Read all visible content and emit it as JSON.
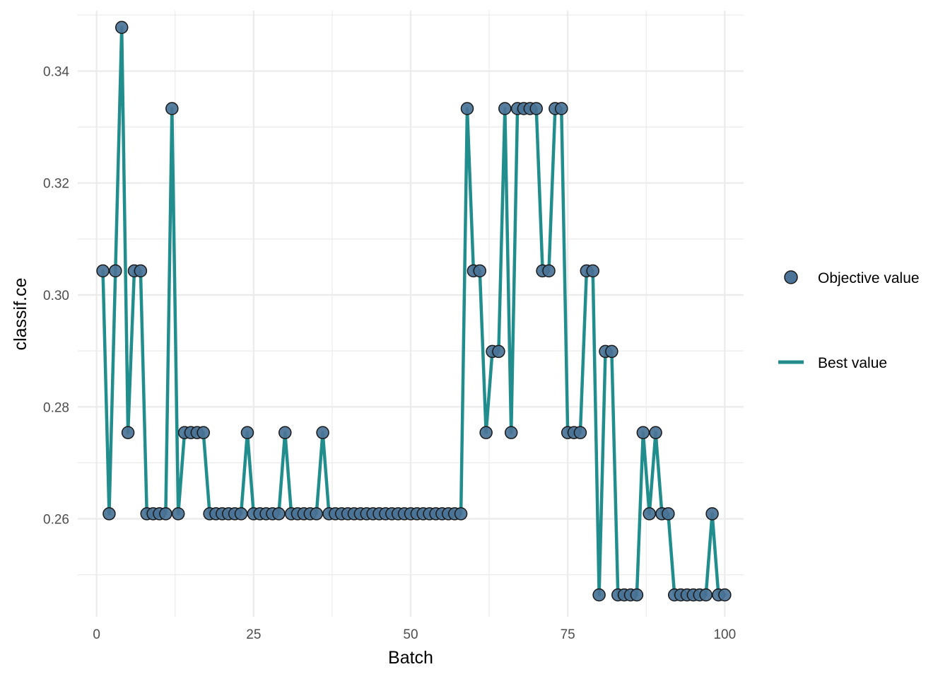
{
  "chart_data": {
    "type": "line",
    "xlabel": "Batch",
    "ylabel": "classif.ce",
    "xlim": [
      -3,
      103
    ],
    "ylim": [
      0.2425,
      0.3508
    ],
    "x_ticks": [
      0,
      25,
      50,
      75,
      100
    ],
    "y_ticks": [
      0.26,
      0.28,
      0.3,
      0.32,
      0.34
    ],
    "x_tick_labels": [
      "0",
      "25",
      "50",
      "75",
      "100"
    ],
    "y_tick_labels": [
      "0.26",
      "0.28",
      "0.30",
      "0.32",
      "0.34"
    ],
    "grid": true,
    "legend_position": "right",
    "x": [
      1,
      2,
      3,
      4,
      5,
      6,
      7,
      8,
      9,
      10,
      11,
      12,
      13,
      14,
      15,
      16,
      17,
      18,
      19,
      20,
      21,
      22,
      23,
      24,
      25,
      26,
      27,
      28,
      29,
      30,
      31,
      32,
      33,
      34,
      35,
      36,
      37,
      38,
      39,
      40,
      41,
      42,
      43,
      44,
      45,
      46,
      47,
      48,
      49,
      50,
      51,
      52,
      53,
      54,
      55,
      56,
      57,
      58,
      59,
      60,
      61,
      62,
      63,
      64,
      65,
      66,
      67,
      68,
      69,
      70,
      71,
      72,
      73,
      74,
      75,
      76,
      77,
      78,
      79,
      80,
      81,
      82,
      83,
      84,
      85,
      86,
      87,
      88,
      89,
      90,
      91,
      92,
      93,
      94,
      95,
      96,
      97,
      98,
      99,
      100
    ],
    "series": [
      {
        "name": "Objective value",
        "kind": "points",
        "color": "#4a7397",
        "values": [
          0.3043,
          0.2609,
          0.3043,
          0.3478,
          0.2754,
          0.3043,
          0.3043,
          0.2609,
          0.2609,
          0.2609,
          0.2609,
          0.3333,
          0.2609,
          0.2754,
          0.2754,
          0.2754,
          0.2754,
          0.2609,
          0.2609,
          0.2609,
          0.2609,
          0.2609,
          0.2609,
          0.2754,
          0.2609,
          0.2609,
          0.2609,
          0.2609,
          0.2609,
          0.2754,
          0.2609,
          0.2609,
          0.2609,
          0.2609,
          0.2609,
          0.2754,
          0.2609,
          0.2609,
          0.2609,
          0.2609,
          0.2609,
          0.2609,
          0.2609,
          0.2609,
          0.2609,
          0.2609,
          0.2609,
          0.2609,
          0.2609,
          0.2609,
          0.2609,
          0.2609,
          0.2609,
          0.2609,
          0.2609,
          0.2609,
          0.2609,
          0.2609,
          0.3333,
          0.3043,
          0.3043,
          0.2754,
          0.2899,
          0.2899,
          0.3333,
          0.2754,
          0.3333,
          0.3333,
          0.3333,
          0.3333,
          0.3043,
          0.3043,
          0.3333,
          0.3333,
          0.2754,
          0.2754,
          0.2754,
          0.3043,
          0.3043,
          0.2464,
          0.2899,
          0.2899,
          0.2464,
          0.2464,
          0.2464,
          0.2464,
          0.2754,
          0.2609,
          0.2754,
          0.2609,
          0.2609,
          0.2464,
          0.2464,
          0.2464,
          0.2464,
          0.2464,
          0.2464,
          0.2609,
          0.2464,
          0.2464
        ]
      },
      {
        "name": "Best value",
        "kind": "line",
        "color": "#218e8d",
        "values": [
          0.3043,
          0.2609,
          0.3043,
          0.3478,
          0.2754,
          0.3043,
          0.3043,
          0.2609,
          0.2609,
          0.2609,
          0.2609,
          0.3333,
          0.2609,
          0.2754,
          0.2754,
          0.2754,
          0.2754,
          0.2609,
          0.2609,
          0.2609,
          0.2609,
          0.2609,
          0.2609,
          0.2754,
          0.2609,
          0.2609,
          0.2609,
          0.2609,
          0.2609,
          0.2754,
          0.2609,
          0.2609,
          0.2609,
          0.2609,
          0.2609,
          0.2754,
          0.2609,
          0.2609,
          0.2609,
          0.2609,
          0.2609,
          0.2609,
          0.2609,
          0.2609,
          0.2609,
          0.2609,
          0.2609,
          0.2609,
          0.2609,
          0.2609,
          0.2609,
          0.2609,
          0.2609,
          0.2609,
          0.2609,
          0.2609,
          0.2609,
          0.2609,
          0.3333,
          0.3043,
          0.3043,
          0.2754,
          0.2899,
          0.2899,
          0.3333,
          0.2754,
          0.3333,
          0.3333,
          0.3333,
          0.3333,
          0.3043,
          0.3043,
          0.3333,
          0.3333,
          0.2754,
          0.2754,
          0.2754,
          0.3043,
          0.3043,
          0.2464,
          0.2899,
          0.2899,
          0.2464,
          0.2464,
          0.2464,
          0.2464,
          0.2754,
          0.2609,
          0.2754,
          0.2609,
          0.2609,
          0.2464,
          0.2464,
          0.2464,
          0.2464,
          0.2464,
          0.2464,
          0.2609,
          0.2464,
          0.2464
        ]
      }
    ],
    "colors": {
      "grid": "#ebebeb",
      "point_stroke": "#1a1a1a"
    }
  }
}
